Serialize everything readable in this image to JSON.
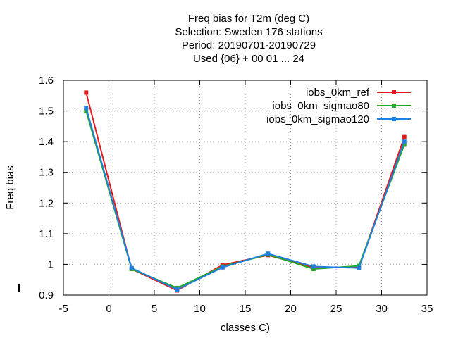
{
  "chart_data": {
    "type": "line",
    "title_lines": [
      "Freq bias  for T2m (deg C)",
      "Selection: Sweden    176 stations",
      "Period: 20190701-20190729",
      "Used {06} + 00 01 ... 24"
    ],
    "xlabel": "classes C)",
    "ylabel": "Freq bias",
    "xlim": [
      -5,
      35
    ],
    "ylim": [
      0.9,
      1.6
    ],
    "xticks": [
      -5,
      0,
      5,
      10,
      15,
      20,
      25,
      30,
      35
    ],
    "xtick_labels": [
      "-5",
      "0",
      "5",
      "10",
      "15",
      "20",
      "25",
      "30",
      "35"
    ],
    "yticks": [
      0.9,
      1.0,
      1.1,
      1.2,
      1.3,
      1.4,
      1.5,
      1.6
    ],
    "ytick_labels": [
      "0.9",
      "1",
      "1.1",
      "1.2",
      "1.3",
      "1.4",
      "1.5",
      "1.6"
    ],
    "grid": true,
    "legend_position": "top-right",
    "x": [
      -2.5,
      2.5,
      7.5,
      12.5,
      17.5,
      22.5,
      27.5,
      32.5
    ],
    "series": [
      {
        "name": "iobs_0km_ref",
        "color": "#e41a1c",
        "marker": "square",
        "values": [
          1.56,
          0.985,
          0.915,
          0.998,
          1.03,
          0.99,
          0.99,
          1.415
        ]
      },
      {
        "name": "iobs_0km_sigmao80",
        "color": "#22aa22",
        "marker": "square",
        "values": [
          1.5,
          0.985,
          0.923,
          0.993,
          1.032,
          0.985,
          0.995,
          1.39
        ]
      },
      {
        "name": "iobs_0km_sigmao120",
        "color": "#1e80e0",
        "marker": "square",
        "values": [
          1.51,
          0.988,
          0.918,
          0.99,
          1.035,
          0.993,
          0.988,
          1.4
        ]
      }
    ]
  }
}
